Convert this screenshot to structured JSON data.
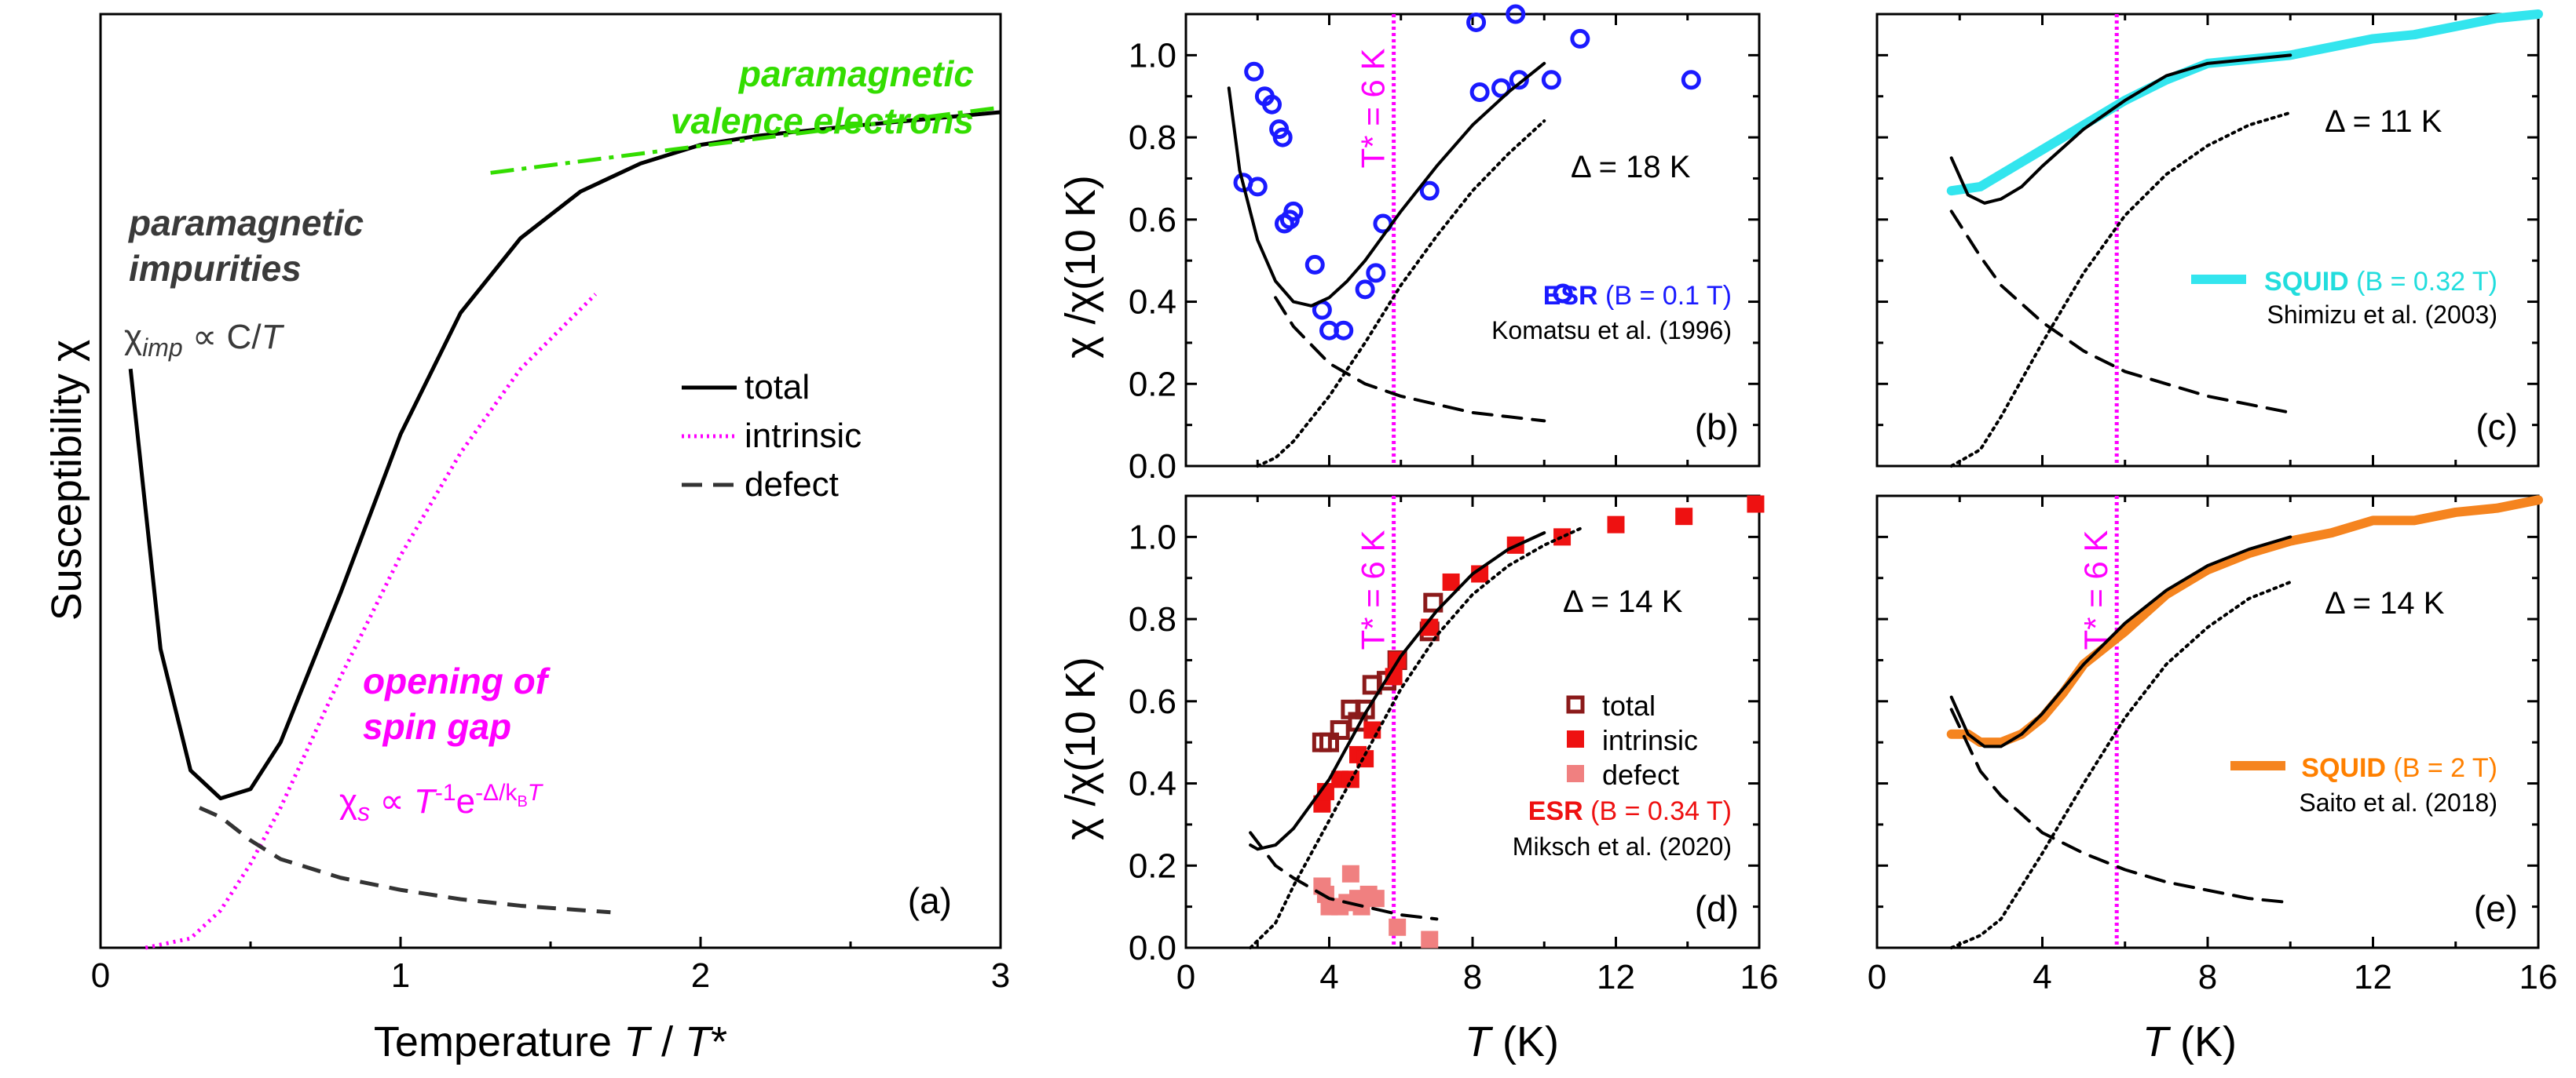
{
  "chart_data": [
    {
      "id": "a",
      "type": "line",
      "panel_label": "(a)",
      "xlabel": "Temperature T / T*",
      "ylabel": "Susceptibility χ",
      "xlim": [
        0,
        3
      ],
      "xticks": [
        "0",
        "1",
        "2",
        "3"
      ],
      "legend": {
        "placement": "center-right",
        "entries": [
          "total",
          "intrinsic",
          "defect"
        ]
      },
      "annotations": {
        "impurities_title_1": "paramagnetic",
        "impurities_title_2": "impurities",
        "impurities_formula": "χimp ∝ C/T",
        "valence_title_1": "paramagnetic",
        "valence_title_2": "valence electrons",
        "gap_title_1": "opening of",
        "gap_title_2": "spin gap",
        "gap_formula": "χs ∝ T⁻¹e−Δ/kBT"
      },
      "series": [
        {
          "name": "total",
          "style": "solid",
          "color": "#000000",
          "x": [
            0.1,
            0.2,
            0.3,
            0.4,
            0.5,
            0.6,
            0.8,
            1.0,
            1.2,
            1.4,
            1.6,
            1.8,
            2.0,
            2.2,
            2.5,
            3.0
          ],
          "y": [
            0.62,
            0.32,
            0.19,
            0.16,
            0.17,
            0.22,
            0.38,
            0.55,
            0.68,
            0.76,
            0.81,
            0.84,
            0.86,
            0.87,
            0.88,
            0.895
          ]
        },
        {
          "name": "intrinsic",
          "style": "dotted",
          "color": "#ff00ff",
          "x": [
            0.15,
            0.3,
            0.4,
            0.5,
            0.6,
            0.7,
            0.8,
            1.0,
            1.2,
            1.4,
            1.65
          ],
          "y": [
            0.0,
            0.01,
            0.04,
            0.09,
            0.15,
            0.22,
            0.29,
            0.42,
            0.53,
            0.62,
            0.7
          ]
        },
        {
          "name": "defect",
          "style": "dashed",
          "color": "#333333",
          "x": [
            0.33,
            0.4,
            0.5,
            0.6,
            0.8,
            1.0,
            1.2,
            1.4,
            1.7
          ],
          "y": [
            0.15,
            0.14,
            0.115,
            0.095,
            0.075,
            0.062,
            0.052,
            0.045,
            0.038
          ]
        },
        {
          "name": "paramagnetic valence electrons",
          "style": "dashdot",
          "color": "#33dd00",
          "x": [
            1.3,
            3.0
          ],
          "y": [
            0.83,
            0.9
          ]
        }
      ]
    },
    {
      "id": "b",
      "type": "scatter",
      "panel_label": "(b)",
      "xlim": [
        0,
        16
      ],
      "ylim": [
        0,
        1.1
      ],
      "xticks": [
        "0",
        "4",
        "8",
        "12",
        "16"
      ],
      "yticks": [
        "0.0",
        "0.2",
        "0.4",
        "0.6",
        "0.8",
        "1.0"
      ],
      "ylabel": "χ /χ(10 K)",
      "tstar_label": "T* = 6 K",
      "tstar": 5.8,
      "delta_label": "Δ = 18 K",
      "legend_bold": "ESR",
      "legend_rest": " (B = 0.1 T)",
      "legend_color": "#1a1aff",
      "ref_label": "Komatsu et al. (1996)",
      "series": [
        {
          "name": "ESR (B = 0.1 T)",
          "marker": "open-circle",
          "color": "#1a1aff",
          "x": [
            1.6,
            1.9,
            2.0,
            2.2,
            2.4,
            2.6,
            2.7,
            2.75,
            2.9,
            3.0,
            3.6,
            3.8,
            4.0,
            4.4,
            5.0,
            5.3,
            5.5,
            6.8,
            8.1,
            8.2,
            8.8,
            9.2,
            9.3,
            10.2,
            11.0,
            14.1
          ],
          "y": [
            0.69,
            0.96,
            0.68,
            0.9,
            0.88,
            0.82,
            0.8,
            0.59,
            0.6,
            0.62,
            0.49,
            0.38,
            0.33,
            0.33,
            0.43,
            0.47,
            0.59,
            0.67,
            1.08,
            0.91,
            0.92,
            1.1,
            0.94,
            0.94,
            1.04,
            0.94
          ]
        },
        {
          "name": "total",
          "style": "solid",
          "color": "#000000",
          "x": [
            1.2,
            1.5,
            2.0,
            2.5,
            3.0,
            3.5,
            4.0,
            4.5,
            5.0,
            6.0,
            7.0,
            8.0,
            9.0,
            10.0
          ],
          "y": [
            0.92,
            0.72,
            0.55,
            0.45,
            0.4,
            0.39,
            0.41,
            0.45,
            0.5,
            0.62,
            0.73,
            0.83,
            0.91,
            0.98
          ]
        },
        {
          "name": "intrinsic",
          "style": "dotted",
          "color": "#000000",
          "x": [
            2.0,
            2.5,
            3.0,
            4.0,
            5.0,
            6.0,
            7.0,
            8.0,
            9.0,
            10.0
          ],
          "y": [
            0.0,
            0.02,
            0.06,
            0.17,
            0.3,
            0.44,
            0.56,
            0.67,
            0.76,
            0.84
          ]
        },
        {
          "name": "defect",
          "style": "dashed",
          "color": "#000000",
          "x": [
            2.5,
            3.0,
            4.0,
            5.0,
            6.0,
            7.0,
            8.0,
            9.0,
            10.0
          ],
          "y": [
            0.41,
            0.34,
            0.25,
            0.2,
            0.17,
            0.15,
            0.13,
            0.12,
            0.11
          ]
        }
      ]
    },
    {
      "id": "c",
      "type": "line",
      "panel_label": "(c)",
      "xlim": [
        0,
        16
      ],
      "ylim": [
        0,
        1.1
      ],
      "tstar": 5.8,
      "delta_label": "Δ = 11 K",
      "legend_bold": "SQUID",
      "legend_rest": " (B = 0.32 T)",
      "legend_color": "#22dddd",
      "ref_label": "Shimizu et al. (2003)",
      "series": [
        {
          "name": "SQUID (B = 0.32 T)",
          "style": "thick",
          "color": "#33e5ee",
          "x": [
            1.8,
            2.5,
            3.0,
            4.0,
            5.0,
            6.0,
            7.0,
            8.0,
            9.0,
            10.0,
            11.0,
            12.0,
            13.0,
            14.0,
            15.0,
            16.0
          ],
          "y": [
            0.67,
            0.68,
            0.71,
            0.77,
            0.83,
            0.89,
            0.94,
            0.98,
            0.99,
            1.0,
            1.02,
            1.04,
            1.05,
            1.07,
            1.09,
            1.1
          ]
        },
        {
          "name": "total",
          "style": "solid",
          "color": "#000000",
          "x": [
            1.8,
            2.2,
            2.6,
            3.0,
            3.5,
            4.0,
            5.0,
            6.0,
            7.0,
            8.0,
            9.0,
            10.0
          ],
          "y": [
            0.75,
            0.66,
            0.64,
            0.65,
            0.68,
            0.73,
            0.82,
            0.89,
            0.95,
            0.98,
            0.99,
            1.0
          ]
        },
        {
          "name": "intrinsic",
          "style": "dotted",
          "color": "#000000",
          "x": [
            1.8,
            2.5,
            3.0,
            4.0,
            5.0,
            6.0,
            7.0,
            8.0,
            9.0,
            10.0
          ],
          "y": [
            0.0,
            0.04,
            0.12,
            0.3,
            0.47,
            0.61,
            0.71,
            0.78,
            0.83,
            0.86
          ]
        },
        {
          "name": "defect",
          "style": "dashed",
          "color": "#000000",
          "x": [
            1.8,
            2.5,
            3.0,
            4.0,
            5.0,
            6.0,
            7.0,
            8.0,
            9.0,
            10.0
          ],
          "y": [
            0.62,
            0.51,
            0.44,
            0.35,
            0.28,
            0.23,
            0.2,
            0.17,
            0.15,
            0.13
          ]
        }
      ]
    },
    {
      "id": "d",
      "type": "scatter",
      "panel_label": "(d)",
      "xlim": [
        0,
        16
      ],
      "ylim": [
        0,
        1.1
      ],
      "xticks": [
        "0",
        "4",
        "8",
        "12",
        "16"
      ],
      "yticks": [
        "0.0",
        "0.2",
        "0.4",
        "0.6",
        "0.8",
        "1.0"
      ],
      "xlabel": "T (K)",
      "ylabel": "χ /χ(10 K)",
      "tstar_label": "T* = 6 K",
      "tstar": 5.8,
      "delta_label": "Δ = 14 K",
      "legend": [
        "total",
        "intrinsic",
        "defect"
      ],
      "legend_bold": "ESR",
      "legend_rest": " (B = 0.34 T)",
      "legend_color": "#ee1111",
      "ref_label": "Miksch et al. (2020)",
      "series": [
        {
          "name": "total",
          "marker": "open-square",
          "color": "#8b1a1a",
          "x": [
            3.8,
            4.0,
            4.3,
            4.6,
            4.8,
            5.0,
            5.2,
            5.6,
            5.9,
            6.8,
            6.9
          ],
          "y": [
            0.5,
            0.5,
            0.53,
            0.58,
            0.55,
            0.58,
            0.64,
            0.65,
            0.7,
            0.77,
            0.84
          ]
        },
        {
          "name": "intrinsic",
          "marker": "filled-square",
          "color": "#ee1111",
          "x": [
            3.8,
            3.9,
            4.3,
            4.6,
            4.8,
            5.0,
            5.2,
            5.8,
            5.9,
            6.8,
            7.4,
            8.2,
            9.2,
            10.5,
            12.0,
            13.9,
            15.9
          ],
          "y": [
            0.35,
            0.38,
            0.41,
            0.41,
            0.47,
            0.46,
            0.53,
            0.66,
            0.7,
            0.78,
            0.89,
            0.91,
            0.98,
            1.0,
            1.03,
            1.05,
            1.08
          ]
        },
        {
          "name": "defect",
          "marker": "filled-square",
          "color": "#f08080",
          "x": [
            3.8,
            3.9,
            4.0,
            4.3,
            4.5,
            4.6,
            4.8,
            4.9,
            5.1,
            5.3,
            5.9,
            6.8
          ],
          "y": [
            0.15,
            0.13,
            0.1,
            0.1,
            0.11,
            0.18,
            0.12,
            0.1,
            0.13,
            0.12,
            0.05,
            0.02
          ]
        },
        {
          "name": "total-fit",
          "style": "solid",
          "color": "#000000",
          "x": [
            1.8,
            2.0,
            2.5,
            3.0,
            4.0,
            5.0,
            6.0,
            7.0,
            8.0,
            9.0,
            10.0
          ],
          "y": [
            0.25,
            0.24,
            0.25,
            0.29,
            0.41,
            0.57,
            0.71,
            0.82,
            0.91,
            0.97,
            1.01
          ]
        },
        {
          "name": "intrinsic-fit",
          "style": "dotted",
          "color": "#000000",
          "x": [
            1.8,
            2.5,
            3.0,
            4.0,
            5.0,
            6.0,
            7.0,
            8.0,
            9.0,
            10.0,
            11.0
          ],
          "y": [
            0.0,
            0.06,
            0.15,
            0.31,
            0.47,
            0.63,
            0.76,
            0.86,
            0.93,
            0.98,
            1.02
          ]
        },
        {
          "name": "defect-fit",
          "style": "dashed",
          "color": "#000000",
          "x": [
            1.8,
            2.5,
            3.0,
            4.0,
            5.0,
            6.0,
            7.0
          ],
          "y": [
            0.28,
            0.2,
            0.17,
            0.12,
            0.1,
            0.08,
            0.07
          ]
        }
      ]
    },
    {
      "id": "e",
      "type": "line",
      "panel_label": "(e)",
      "xlim": [
        0,
        16
      ],
      "ylim": [
        0,
        1.1
      ],
      "xticks": [
        "0",
        "4",
        "8",
        "12",
        "16"
      ],
      "xlabel": "T (K)",
      "tstar_label": "T* = 6 K",
      "tstar": 5.8,
      "delta_label": "Δ = 14 K",
      "legend_bold": "SQUID",
      "legend_rest": " (B = 2 T)",
      "legend_color": "#ff8000",
      "ref_label": "Saito et al. (2018)",
      "series": [
        {
          "name": "SQUID (B = 2 T)",
          "style": "thick",
          "color": "#f5841f",
          "x": [
            1.8,
            2.2,
            2.5,
            3.0,
            3.5,
            4.0,
            4.5,
            5.0,
            6.0,
            7.0,
            8.0,
            9.0,
            10.0,
            11.0,
            12.0,
            13.0,
            14.0,
            15.0,
            16.0
          ],
          "y": [
            0.52,
            0.52,
            0.5,
            0.5,
            0.52,
            0.56,
            0.62,
            0.69,
            0.77,
            0.86,
            0.92,
            0.96,
            0.99,
            1.01,
            1.04,
            1.04,
            1.06,
            1.07,
            1.09
          ]
        },
        {
          "name": "total",
          "style": "solid",
          "color": "#000000",
          "x": [
            1.8,
            2.2,
            2.6,
            3.0,
            3.5,
            4.0,
            4.5,
            5.0,
            6.0,
            7.0,
            8.0,
            9.0,
            10.0
          ],
          "y": [
            0.61,
            0.52,
            0.49,
            0.49,
            0.52,
            0.57,
            0.63,
            0.69,
            0.79,
            0.87,
            0.93,
            0.97,
            1.0
          ]
        },
        {
          "name": "intrinsic",
          "style": "dotted",
          "color": "#000000",
          "x": [
            1.8,
            2.5,
            3.0,
            4.0,
            5.0,
            6.0,
            7.0,
            8.0,
            9.0,
            10.0
          ],
          "y": [
            0.0,
            0.03,
            0.07,
            0.23,
            0.4,
            0.56,
            0.69,
            0.78,
            0.85,
            0.89
          ]
        },
        {
          "name": "defect",
          "style": "dashed",
          "color": "#000000",
          "x": [
            1.8,
            2.5,
            3.0,
            4.0,
            5.0,
            6.0,
            7.0,
            8.0,
            9.0,
            10.0
          ],
          "y": [
            0.58,
            0.43,
            0.37,
            0.28,
            0.23,
            0.19,
            0.16,
            0.14,
            0.12,
            0.11
          ]
        }
      ]
    }
  ]
}
